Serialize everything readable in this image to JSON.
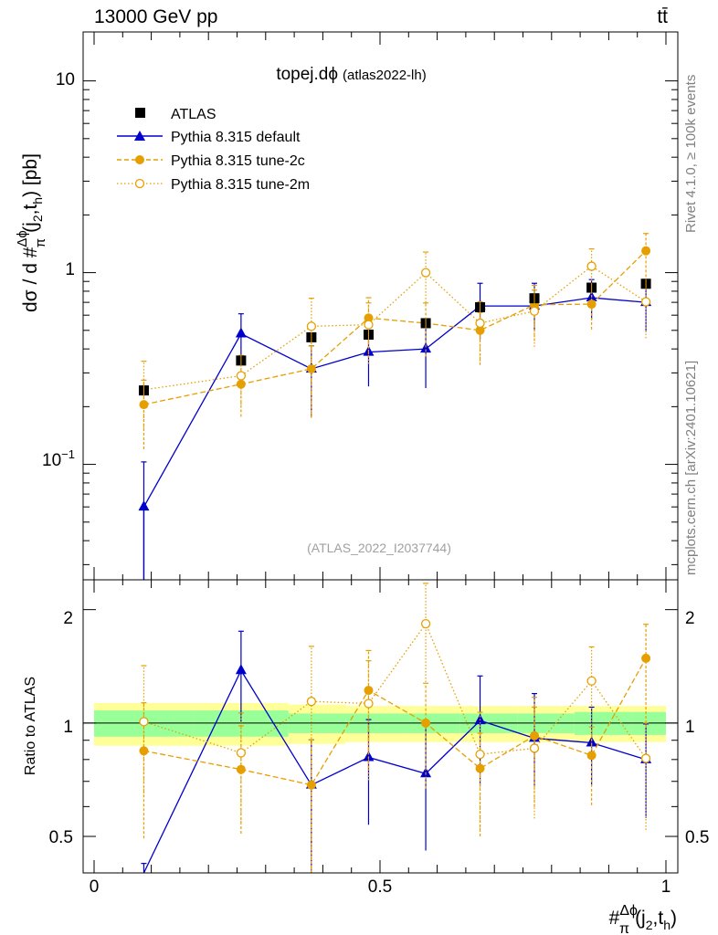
{
  "header": {
    "left": "13000 GeV pp",
    "right": "tt̄"
  },
  "side": {
    "rivet": "Rivet 4.1.0, ≥ 100k events",
    "site": "mcplots.cern.ch [arXiv:2401.10621]"
  },
  "main": {
    "title": "topej.dϕ",
    "subtitle": "(atlas2022-lh)",
    "analysis_id": "(ATLAS_2022_I2037744)",
    "ylabel": "dσ / d #Δϕ/π(j2,th) [pb]",
    "ylabel_parts": {
      "pre": "dσ / d #",
      "num": "Δϕ",
      "den": "π",
      "arg": "(j",
      "sub1": "2",
      "mid": ",t",
      "sub2": "h",
      "post": ") [pb]"
    },
    "yticks": [
      {
        "value": 0.1,
        "base": "10",
        "exp": "−1"
      },
      {
        "value": 1,
        "label": "1"
      },
      {
        "value": 10,
        "label": "10"
      }
    ]
  },
  "ratio": {
    "ylabel": "Ratio to ATLAS",
    "yticks": [
      "0.5",
      "1",
      "2"
    ]
  },
  "xaxis": {
    "ticks": [
      "0",
      "0.5",
      "1"
    ],
    "label_parts": {
      "pre": "#",
      "num": "Δϕ",
      "den": "π",
      "arg": "(j",
      "sub1": "2",
      "mid": ",t",
      "sub2": "h",
      "post": ")"
    }
  },
  "colors": {
    "data": "#000000",
    "default": "#0000cc",
    "tune": "#e69f00",
    "band_inner": "#99ff99",
    "band_outer": "#ffff99"
  },
  "chart_data": {
    "type": "scatter",
    "title": "topej.dϕ (atlas2022-lh)",
    "xlim": [
      0,
      1
    ],
    "ylim_log": [
      0.025,
      18
    ],
    "ratio_ylim_log": [
      0.4,
      2.4
    ],
    "bin_edges": [
      0,
      0.174,
      0.34,
      0.44,
      0.54,
      0.64,
      0.74,
      0.84,
      0.94,
      1.0
    ],
    "x": [
      0.087,
      0.257,
      0.38,
      0.48,
      0.58,
      0.675,
      0.77,
      0.87,
      0.965
    ],
    "legend": [
      {
        "name": "ATLAS",
        "marker": "square",
        "color": "#000000"
      },
      {
        "name": "Pythia 8.315 default",
        "marker": "triangle",
        "color": "#0000cc"
      },
      {
        "name": "Pythia 8.315 tune-2c",
        "marker": "circle",
        "color": "#e69f00"
      },
      {
        "name": "Pythia 8.315 tune-2m",
        "marker": "open-circle",
        "color": "#e69f00"
      }
    ],
    "data": {
      "name": "ATLAS",
      "values": [
        0.243,
        0.348,
        0.46,
        0.475,
        0.545,
        0.66,
        0.735,
        0.835,
        0.875
      ],
      "errors": [
        0.02,
        0.025,
        0.03,
        0.03,
        0.035,
        0.04,
        0.045,
        0.05,
        0.05
      ],
      "band_inner": [
        0.08,
        0.08,
        0.06,
        0.06,
        0.06,
        0.06,
        0.06,
        0.07,
        0.07
      ],
      "band_outer": [
        0.13,
        0.13,
        0.12,
        0.11,
        0.11,
        0.11,
        0.11,
        0.11,
        0.11
      ]
    },
    "series": [
      {
        "name": "Pythia 8.315 default",
        "values": [
          0.06,
          0.48,
          0.315,
          0.385,
          0.4,
          0.67,
          0.67,
          0.74,
          0.7
        ],
        "err_lo": [
          0.04,
          0.13,
          0.14,
          0.13,
          0.15,
          0.22,
          0.17,
          0.17,
          0.21
        ],
        "err_hi": [
          0.043,
          0.13,
          0.1,
          0.1,
          0.14,
          0.21,
          0.21,
          0.18,
          0.17
        ]
      },
      {
        "name": "Pythia 8.315 tune-2c",
        "values": [
          0.205,
          0.262,
          0.315,
          0.58,
          0.545,
          0.5,
          0.68,
          0.685,
          1.3
        ],
        "err_lo": [
          0.085,
          0.085,
          0.14,
          0.22,
          0.18,
          0.17,
          0.24,
          0.18,
          0.45
        ],
        "err_hi": [
          0.07,
          0.08,
          0.1,
          0.16,
          0.15,
          0.12,
          0.18,
          0.13,
          0.3
        ]
      },
      {
        "name": "Pythia 8.315 tune-2m",
        "values": [
          0.245,
          0.29,
          0.525,
          0.535,
          1.0,
          0.545,
          0.63,
          1.08,
          0.705
        ],
        "err_lo": [
          0.09,
          0.1,
          0.35,
          0.2,
          0.3,
          0.2,
          0.22,
          0.36,
          0.25
        ],
        "err_hi": [
          0.1,
          0.08,
          0.21,
          0.16,
          0.28,
          0.16,
          0.18,
          0.25,
          0.17
        ]
      }
    ]
  }
}
